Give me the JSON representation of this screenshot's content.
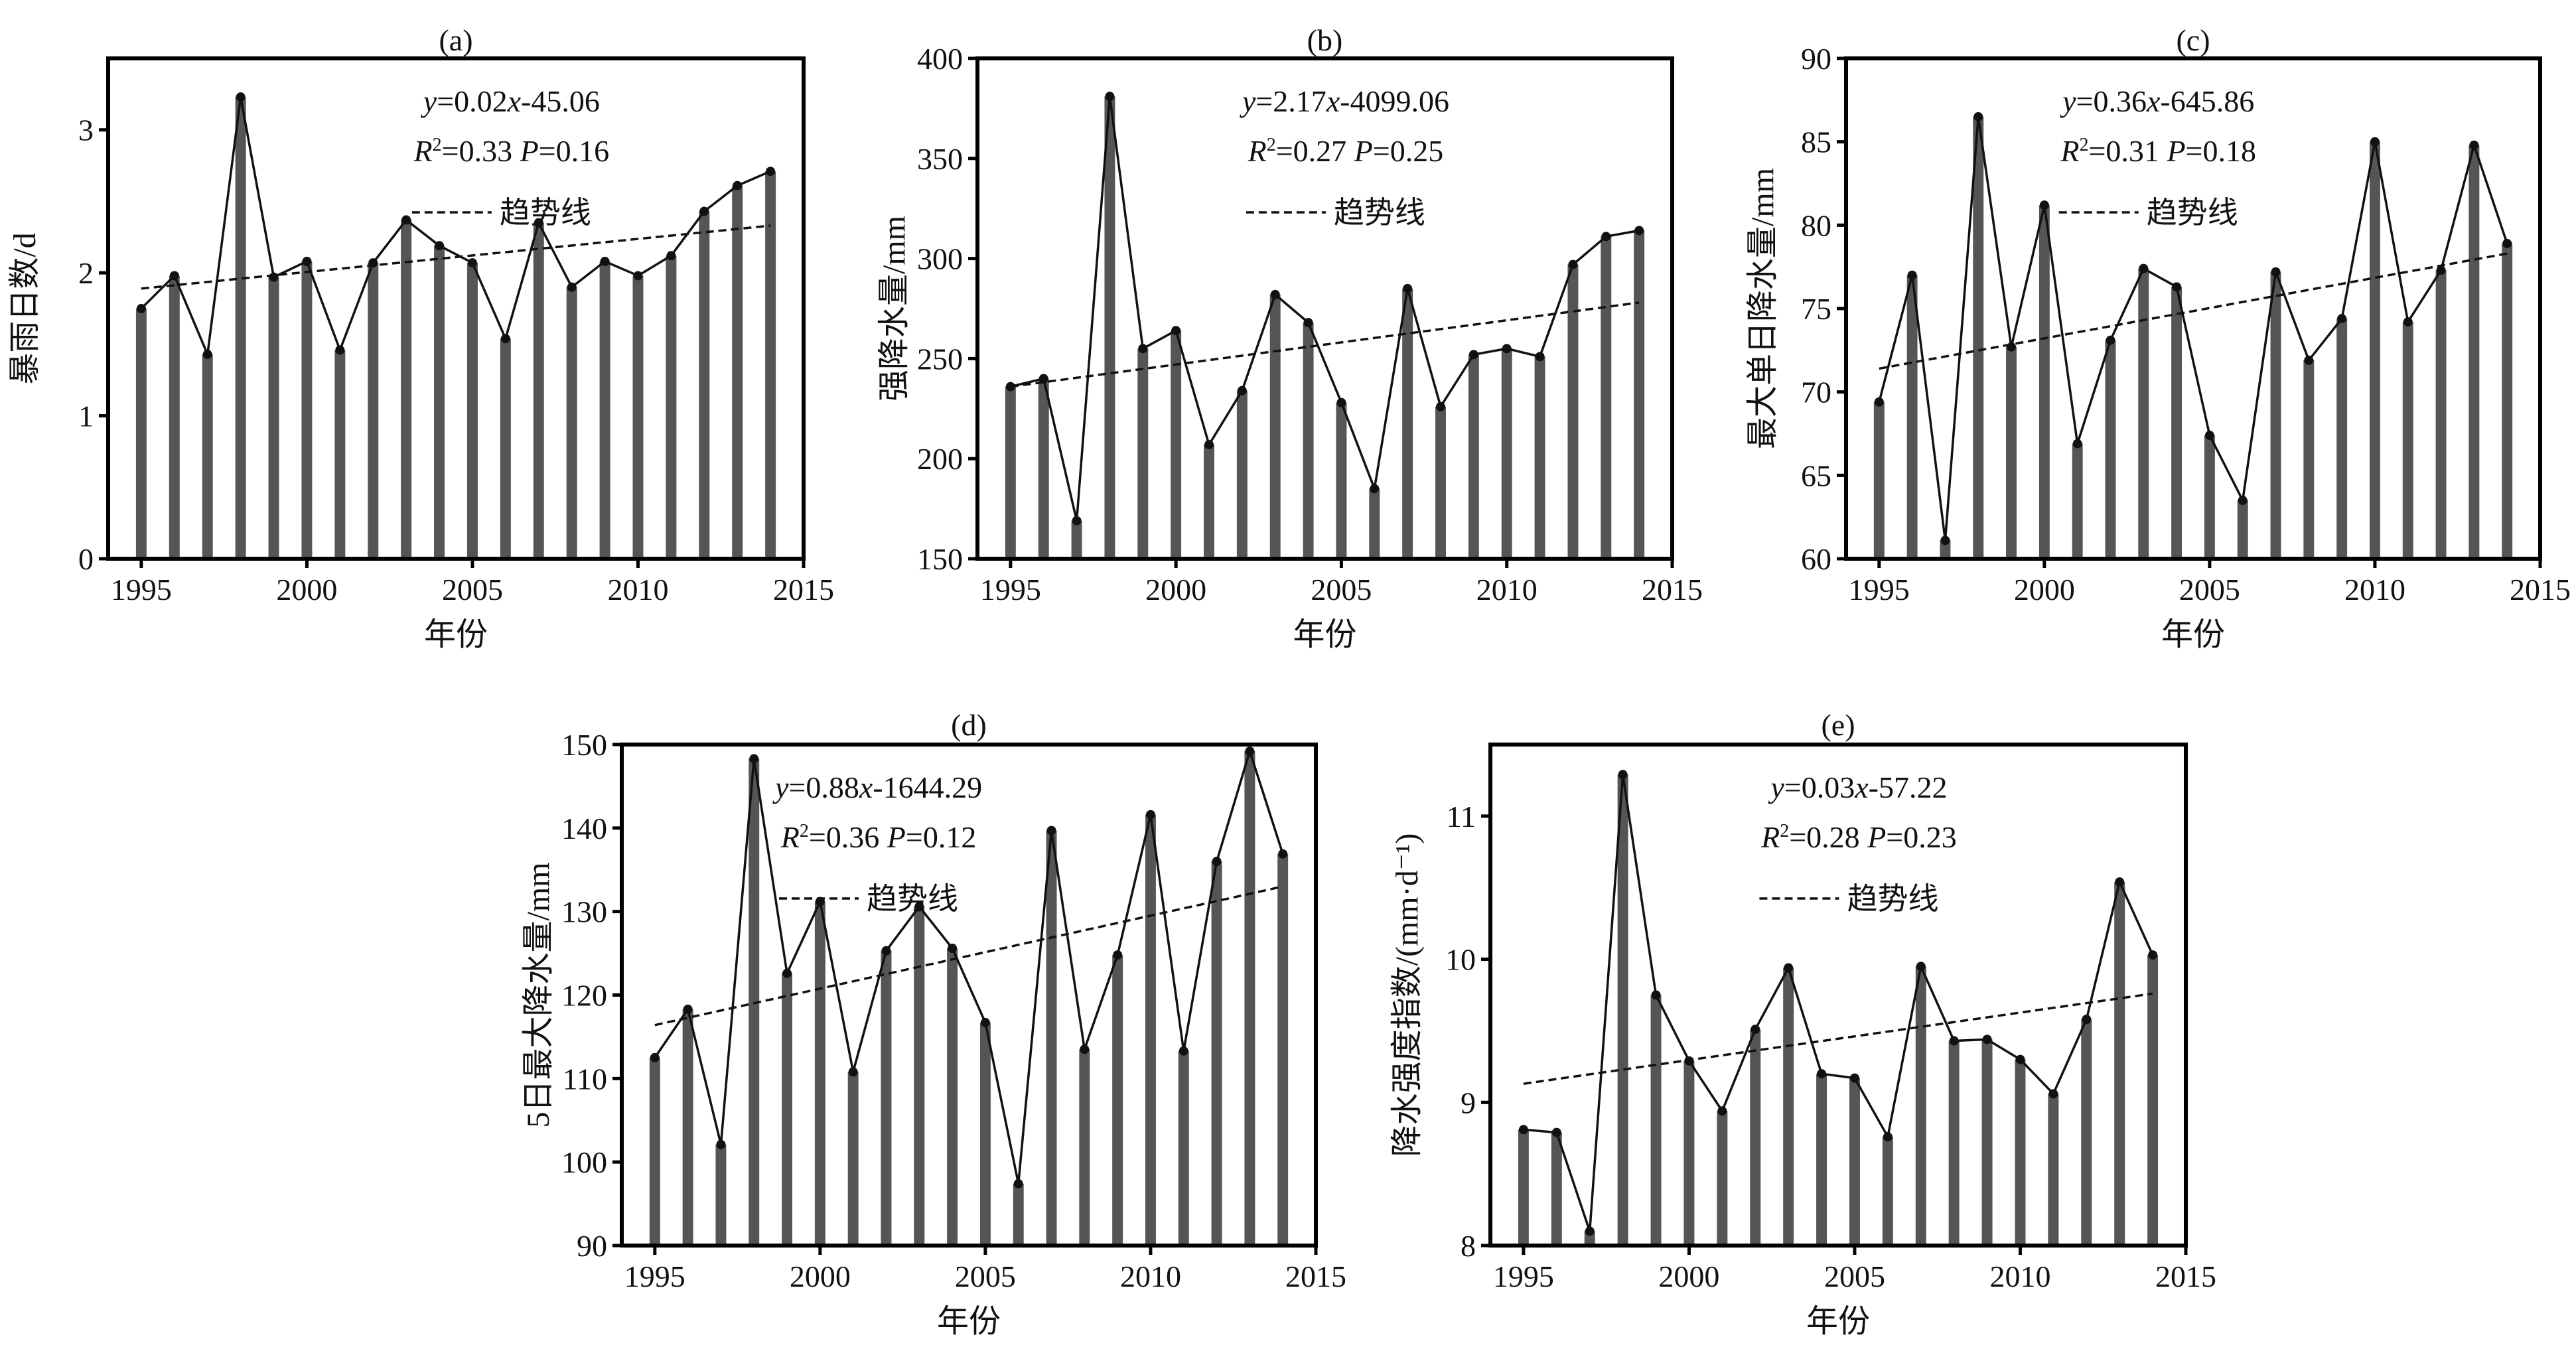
{
  "figure": {
    "trend_legend_label": "趋势线"
  },
  "chart_data": [
    {
      "id": "a",
      "type": "bar",
      "panel_label": "(a)",
      "title": "(a)",
      "xlabel": "年份",
      "ylabel": "暴雨日数/d",
      "x": [
        1995,
        1996,
        1997,
        1998,
        1999,
        2000,
        2001,
        2002,
        2003,
        2004,
        2005,
        2006,
        2007,
        2008,
        2009,
        2010,
        2011,
        2012,
        2013,
        2014
      ],
      "values": [
        1.75,
        1.98,
        1.43,
        3.23,
        1.97,
        2.08,
        1.46,
        2.07,
        2.37,
        2.19,
        2.07,
        1.54,
        2.35,
        1.9,
        2.08,
        1.98,
        2.12,
        2.43,
        2.61,
        2.71
      ],
      "ylim": [
        0,
        3.5
      ],
      "xlim": [
        1994,
        2015
      ],
      "yticks": [
        0,
        1,
        2,
        3
      ],
      "xticks": [
        1995,
        2000,
        2005,
        2010,
        2015
      ],
      "trend": {
        "start": 1.89,
        "end": 2.33
      },
      "equation": {
        "y_part": "y",
        "eq1": "=0.02",
        "x_part": "x",
        "eq2": "-45.06"
      },
      "r2_label": "R",
      "r2_value": "=0.33",
      "p_label": "P",
      "p_value": "=0.16",
      "grid": false
    },
    {
      "id": "b",
      "type": "bar",
      "panel_label": "(b)",
      "title": "(b)",
      "xlabel": "年份",
      "ylabel": "强降水量/mm",
      "x": [
        1995,
        1996,
        1997,
        1998,
        1999,
        2000,
        2001,
        2002,
        2003,
        2004,
        2005,
        2006,
        2007,
        2008,
        2009,
        2010,
        2011,
        2012,
        2013,
        2014
      ],
      "values": [
        236,
        240,
        169,
        381,
        255,
        264,
        207,
        234,
        282,
        268,
        228,
        185,
        285,
        226,
        252,
        255,
        251,
        297,
        311,
        314
      ],
      "ylim": [
        150,
        400
      ],
      "xlim": [
        1994,
        2015
      ],
      "yticks": [
        150,
        200,
        250,
        300,
        350,
        400
      ],
      "xticks": [
        1995,
        2000,
        2005,
        2010,
        2015
      ],
      "trend": {
        "start": 236,
        "end": 278
      },
      "equation": {
        "y_part": "y",
        "eq1": "=2.17",
        "x_part": "x",
        "eq2": "-4099.06"
      },
      "r2_label": "R",
      "r2_value": "=0.27",
      "p_label": "P",
      "p_value": "=0.25",
      "grid": false
    },
    {
      "id": "c",
      "type": "bar",
      "panel_label": "(c)",
      "title": "(c)",
      "xlabel": "年份",
      "ylabel": "最大单日降水量/mm",
      "x": [
        1995,
        1996,
        1997,
        1998,
        1999,
        2000,
        2001,
        2002,
        2003,
        2004,
        2005,
        2006,
        2007,
        2008,
        2009,
        2010,
        2011,
        2012,
        2013,
        2014
      ],
      "values": [
        69.4,
        77.0,
        61.1,
        86.5,
        72.7,
        81.2,
        66.9,
        73.1,
        77.4,
        76.3,
        67.4,
        63.5,
        77.2,
        71.9,
        74.4,
        85.0,
        74.2,
        77.3,
        84.8,
        78.9
      ],
      "ylim": [
        60,
        90
      ],
      "xlim": [
        1994,
        2015
      ],
      "yticks": [
        60,
        65,
        70,
        75,
        80,
        85,
        90
      ],
      "xticks": [
        1995,
        2000,
        2005,
        2010,
        2015
      ],
      "trend": {
        "start": 71.4,
        "end": 78.3
      },
      "equation": {
        "y_part": "y",
        "eq1": "=0.36",
        "x_part": "x",
        "eq2": "-645.86"
      },
      "r2_label": "R",
      "r2_value": "=0.31",
      "p_label": "P",
      "p_value": "=0.18",
      "grid": false
    },
    {
      "id": "d",
      "type": "bar",
      "panel_label": "(d)",
      "title": "(d)",
      "xlabel": "年份",
      "ylabel": "5日最大降水量/mm",
      "x": [
        1995,
        1996,
        1997,
        1998,
        1999,
        2000,
        2001,
        2002,
        2003,
        2004,
        2005,
        2006,
        2007,
        2008,
        2009,
        2010,
        2011,
        2012,
        2013,
        2014
      ],
      "values": [
        112.5,
        118.3,
        102.1,
        148.3,
        122.6,
        131.2,
        110.8,
        125.3,
        130.6,
        125.6,
        116.7,
        97.4,
        139.7,
        113.5,
        124.8,
        141.6,
        113.3,
        136.0,
        149.2,
        136.9
      ],
      "ylim": [
        90,
        150
      ],
      "xlim": [
        1994,
        2015
      ],
      "yticks": [
        90,
        100,
        110,
        120,
        130,
        140,
        150
      ],
      "xticks": [
        1995,
        2000,
        2005,
        2010,
        2015
      ],
      "trend": {
        "start": 116.4,
        "end": 133.0
      },
      "equation": {
        "y_part": "y",
        "eq1": "=0.88",
        "x_part": "x",
        "eq2": "-1644.29"
      },
      "r2_label": "R",
      "r2_value": "=0.36",
      "p_label": "P",
      "p_value": "=0.12",
      "grid": false
    },
    {
      "id": "e",
      "type": "bar",
      "panel_label": "(e)",
      "title": "(e)",
      "xlabel": "年份",
      "ylabel": "降水强度指数/(mm·d⁻¹)",
      "x": [
        1995,
        1996,
        1997,
        1998,
        1999,
        2000,
        2001,
        2002,
        2003,
        2004,
        2005,
        2006,
        2007,
        2008,
        2009,
        2010,
        2011,
        2012,
        2013,
        2014
      ],
      "values": [
        8.81,
        8.79,
        8.1,
        11.29,
        9.75,
        9.29,
        8.94,
        9.51,
        9.94,
        9.2,
        9.17,
        8.76,
        9.95,
        9.43,
        9.44,
        9.3,
        9.06,
        9.58,
        10.54,
        10.03
      ],
      "ylim": [
        8,
        11.5
      ],
      "xlim": [
        1994,
        2015
      ],
      "yticks": [
        8,
        9,
        10,
        11
      ],
      "xticks": [
        1995,
        2000,
        2005,
        2010,
        2015
      ],
      "trend": {
        "start": 9.13,
        "end": 9.76
      },
      "equation": {
        "y_part": "y",
        "eq1": "=0.03",
        "x_part": "x",
        "eq2": "-57.22"
      },
      "r2_label": "R",
      "r2_value": "=0.28",
      "p_label": "P",
      "p_value": "=0.23",
      "grid": false
    }
  ]
}
